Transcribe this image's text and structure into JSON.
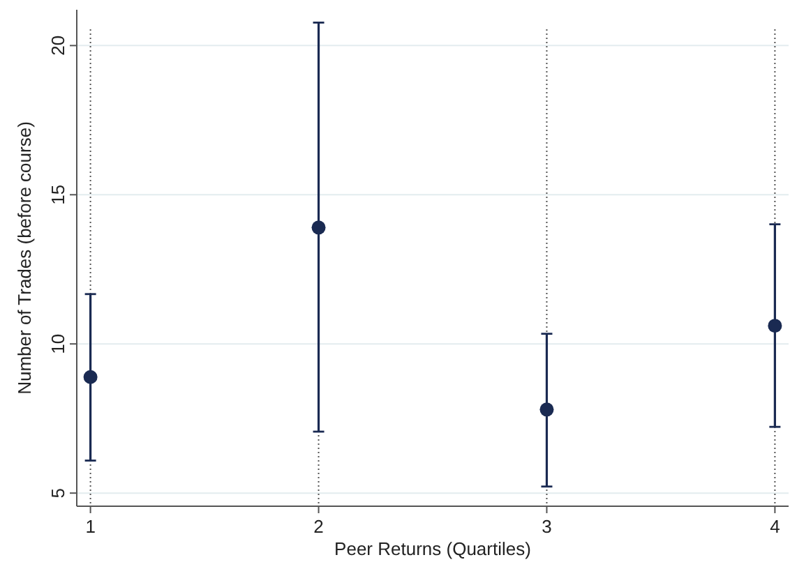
{
  "chart_data": {
    "type": "scatter",
    "xlabel": "Peer Returns (Quartiles)",
    "ylabel": "Number of Trades (before course)",
    "x": [
      1,
      2,
      3,
      4
    ],
    "series": [
      {
        "color": "#1a2a52",
        "values": [
          8.89,
          13.9,
          7.8,
          10.61
        ],
        "errors": [
          [
            6.09,
            11.67
          ],
          [
            7.06,
            20.77
          ],
          [
            5.22,
            10.34
          ],
          [
            7.22,
            14.01
          ]
        ]
      }
    ],
    "xlim": [
      0.94,
      4.06
    ],
    "xticks": [
      1,
      2,
      3,
      4
    ],
    "ylim": [
      4.56,
      21.2
    ],
    "yticks": [
      5,
      10,
      15,
      20
    ],
    "grid": true,
    "marker": "circle"
  }
}
